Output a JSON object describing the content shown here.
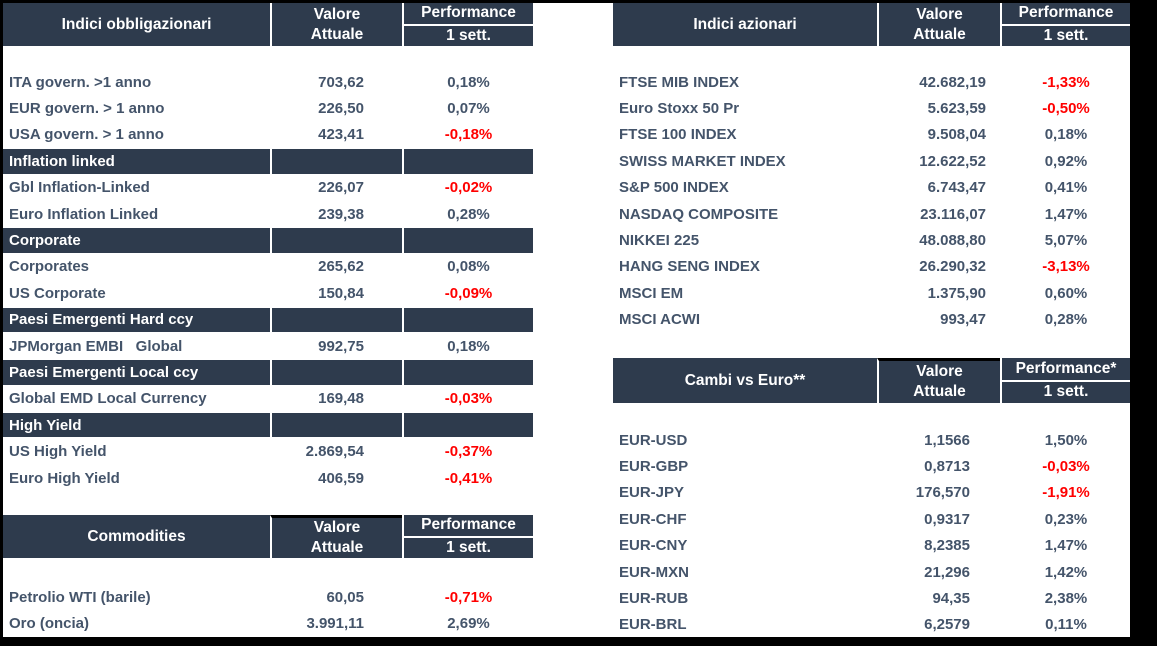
{
  "colors": {
    "header_bg": "#2E3B4D",
    "row_dark": "#C7D9EE",
    "row_light": "#DBE5F2",
    "value_col_dark": "#ADBACB",
    "value_col_light": "#B7C3D1",
    "text": "#44546A",
    "negative": "#FF0000",
    "grid_line": "#FFFFFF",
    "frame": "#000000"
  },
  "tables": {
    "bonds": {
      "title": "Indici obbligazionari",
      "value_header": [
        "Valore",
        "Attuale"
      ],
      "perf_header": [
        "Performance",
        "1 sett."
      ],
      "rows": [
        {
          "kind": "data",
          "label": "ITA govern. >1 anno",
          "value": "703,62",
          "perf": "0,18%",
          "negative": false,
          "shade": "dark"
        },
        {
          "kind": "data",
          "label": "EUR govern. > 1 anno",
          "value": "226,50",
          "perf": "0,07%",
          "negative": false,
          "shade": "light"
        },
        {
          "kind": "data",
          "label": "USA govern. > 1 anno",
          "value": "423,41",
          "perf": "-0,18%",
          "negative": true,
          "shade": "dark"
        },
        {
          "kind": "section",
          "label": "Inflation linked"
        },
        {
          "kind": "data",
          "label": "Gbl Inflation-Linked",
          "value": "226,07",
          "perf": "-0,02%",
          "negative": true,
          "shade": "dark"
        },
        {
          "kind": "data",
          "label": "Euro Inflation Linked",
          "value": "239,38",
          "perf": "0,28%",
          "negative": false,
          "shade": "light"
        },
        {
          "kind": "section",
          "label": "Corporate"
        },
        {
          "kind": "data",
          "label": "Corporates",
          "value": "265,62",
          "perf": "0,08%",
          "negative": false,
          "shade": "dark"
        },
        {
          "kind": "data",
          "label": "US Corporate",
          "value": "150,84",
          "perf": "-0,09%",
          "negative": true,
          "shade": "light"
        },
        {
          "kind": "section",
          "label": "Paesi Emergenti Hard ccy"
        },
        {
          "kind": "data",
          "label": "JPMorgan EMBI   Global",
          "value": "992,75",
          "perf": "0,18%",
          "negative": false,
          "shade": "dark"
        },
        {
          "kind": "section",
          "label": "Paesi Emergenti Local ccy"
        },
        {
          "kind": "data",
          "label": "Global EMD Local Currency",
          "value": "169,48",
          "perf": "-0,03%",
          "negative": true,
          "shade": "dark"
        },
        {
          "kind": "section",
          "label": "High Yield"
        },
        {
          "kind": "data",
          "label": "US High Yield",
          "value": "2.869,54",
          "perf": "-0,37%",
          "negative": true,
          "shade": "dark"
        },
        {
          "kind": "data",
          "label": "Euro High Yield",
          "value": "406,59",
          "perf": "-0,41%",
          "negative": true,
          "shade": "light"
        }
      ]
    },
    "equities": {
      "title": "Indici azionari",
      "value_header": [
        "Valore",
        "Attuale"
      ],
      "perf_header": [
        "Performance",
        "1 sett."
      ],
      "rows": [
        {
          "kind": "data",
          "label": "FTSE MIB INDEX",
          "value": "42.682,19",
          "perf": "-1,33%",
          "negative": true,
          "shade": "dark"
        },
        {
          "kind": "data",
          "label": "Euro Stoxx 50 Pr",
          "value": "5.623,59",
          "perf": "-0,50%",
          "negative": true,
          "shade": "light"
        },
        {
          "kind": "data",
          "label": "FTSE 100 INDEX",
          "value": "9.508,04",
          "perf": "0,18%",
          "negative": false,
          "shade": "dark"
        },
        {
          "kind": "data",
          "label": "SWISS MARKET INDEX",
          "value": "12.622,52",
          "perf": "0,92%",
          "negative": false,
          "shade": "light"
        },
        {
          "kind": "data",
          "label": "S&P 500 INDEX",
          "value": "6.743,47",
          "perf": "0,41%",
          "negative": false,
          "shade": "dark"
        },
        {
          "kind": "data",
          "label": "NASDAQ COMPOSITE",
          "value": "23.116,07",
          "perf": "1,47%",
          "negative": false,
          "shade": "light"
        },
        {
          "kind": "data",
          "label": "NIKKEI 225",
          "value": "48.088,80",
          "perf": "5,07%",
          "negative": false,
          "shade": "dark"
        },
        {
          "kind": "data",
          "label": "HANG SENG INDEX",
          "value": "26.290,32",
          "perf": "-3,13%",
          "negative": true,
          "shade": "light"
        },
        {
          "kind": "data",
          "label": "MSCI EM",
          "value": "1.375,90",
          "perf": "0,60%",
          "negative": false,
          "shade": "dark"
        },
        {
          "kind": "data",
          "label": "MSCI ACWI",
          "value": "993,47",
          "perf": "0,28%",
          "negative": false,
          "shade": "light"
        }
      ]
    },
    "commodities": {
      "title": "Commodities",
      "value_header": [
        "Valore",
        "Attuale"
      ],
      "perf_header": [
        "Performance",
        "1 sett."
      ],
      "rows": [
        {
          "kind": "data",
          "label": "Petrolio WTI (barile)",
          "value": "60,05",
          "perf": "-0,71%",
          "negative": true,
          "shade": "dark"
        },
        {
          "kind": "data",
          "label": "Oro (oncia)",
          "value": "3.991,11",
          "perf": "2,69%",
          "negative": false,
          "shade": "light"
        }
      ]
    },
    "fx": {
      "title": "Cambi vs Euro**",
      "value_header": [
        "Valore",
        "Attuale"
      ],
      "perf_header": [
        "Performance*",
        "1 sett."
      ],
      "rows": [
        {
          "kind": "data",
          "label": "EUR-USD",
          "value": "1,1566",
          "perf": "1,50%",
          "negative": false,
          "shade": "dark"
        },
        {
          "kind": "data",
          "label": "EUR-GBP",
          "value": "0,8713",
          "perf": "-0,03%",
          "negative": true,
          "shade": "light"
        },
        {
          "kind": "data",
          "label": "EUR-JPY",
          "value": "176,570",
          "perf": "-1,91%",
          "negative": true,
          "shade": "dark"
        },
        {
          "kind": "data",
          "label": "EUR-CHF",
          "value": "0,9317",
          "perf": "0,23%",
          "negative": false,
          "shade": "light"
        },
        {
          "kind": "data",
          "label": "EUR-CNY",
          "value": "8,2385",
          "perf": "1,47%",
          "negative": false,
          "shade": "dark"
        },
        {
          "kind": "data",
          "label": "EUR-MXN",
          "value": "21,296",
          "perf": "1,42%",
          "negative": false,
          "shade": "light"
        },
        {
          "kind": "data",
          "label": "EUR-RUB",
          "value": "94,35",
          "perf": "2,38%",
          "negative": false,
          "shade": "dark"
        },
        {
          "kind": "data",
          "label": "EUR-BRL",
          "value": "6,2579",
          "perf": "0,11%",
          "negative": false,
          "shade": "light"
        }
      ]
    }
  }
}
